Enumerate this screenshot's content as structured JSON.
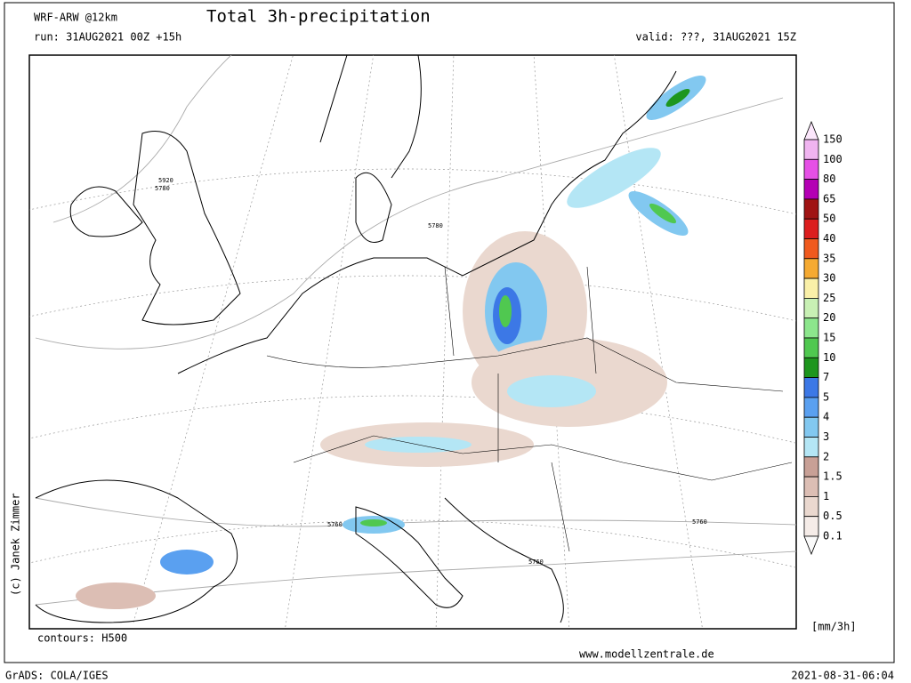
{
  "header": {
    "model": "WRF-ARW @12km",
    "title": "Total 3h-precipitation",
    "run": "run: 31AUG2021 00Z +15h",
    "valid": "valid: ???, 31AUG2021 15Z"
  },
  "map": {
    "contour_labels": [
      "5920",
      "5780",
      "5760",
      "5760",
      "5760",
      "5780"
    ]
  },
  "legend": {
    "labels": [
      "150",
      "100",
      "80",
      "65",
      "50",
      "40",
      "35",
      "30",
      "25",
      "20",
      "15",
      "10",
      "7",
      "5",
      "4",
      "3",
      "2",
      "1.5",
      "1",
      "0.5",
      "0.1"
    ],
    "colors": [
      "#fbe6fb",
      "#f0b4f0",
      "#e650e6",
      "#b400b4",
      "#a01414",
      "#dc1e1e",
      "#f05a1e",
      "#f5aa32",
      "#faf0a8",
      "#c8f0b4",
      "#8ce68c",
      "#50c850",
      "#1e961e",
      "#3c78e6",
      "#5aa0f0",
      "#82c8f0",
      "#b4e6f5",
      "#c8a096",
      "#dcbeb4",
      "#ead8cf",
      "#f5ece8",
      "#fafafa"
    ],
    "unit": "[mm/3h]"
  },
  "footer": {
    "contours": "contours: H500",
    "website": "www.modellzentrale.de",
    "copyright": "(c) Janek Zimmer",
    "software": "GrADS: COLA/IGES",
    "timestamp": "2021-08-31-06:04"
  }
}
